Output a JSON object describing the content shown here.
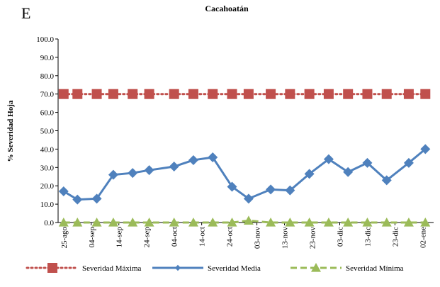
{
  "chart_data": {
    "type": "line",
    "title": "Cacahoatán",
    "annotation": "E",
    "ylabel": "% Severidad Hoja",
    "x": [
      0,
      5,
      12,
      18,
      25,
      31,
      40,
      47,
      54,
      61,
      67,
      75,
      82,
      89,
      96,
      103,
      110,
      117,
      125,
      131
    ],
    "xlim": [
      -2,
      134
    ],
    "xticks": [
      {
        "value": 0,
        "label": "25-ago"
      },
      {
        "value": 10,
        "label": "04-sep"
      },
      {
        "value": 20,
        "label": "14-sep"
      },
      {
        "value": 30,
        "label": "24-sep"
      },
      {
        "value": 40,
        "label": "04-oct"
      },
      {
        "value": 50,
        "label": "14-oct"
      },
      {
        "value": 60,
        "label": "24-oct"
      },
      {
        "value": 70,
        "label": "03-nov"
      },
      {
        "value": 80,
        "label": "13-nov"
      },
      {
        "value": 90,
        "label": "23-nov"
      },
      {
        "value": 100,
        "label": "03-dic"
      },
      {
        "value": 110,
        "label": "13-dic"
      },
      {
        "value": 120,
        "label": "23-dic"
      },
      {
        "value": 130,
        "label": "02-ene"
      }
    ],
    "ylim": [
      0,
      100
    ],
    "yticks": [
      {
        "value": 0,
        "label": "0.0"
      },
      {
        "value": 10,
        "label": "10.0"
      },
      {
        "value": 20,
        "label": "20.0"
      },
      {
        "value": 30,
        "label": "30.0"
      },
      {
        "value": 40,
        "label": "40.0"
      },
      {
        "value": 50,
        "label": "50.0"
      },
      {
        "value": 60,
        "label": "60.0"
      },
      {
        "value": 70,
        "label": "70.0"
      },
      {
        "value": 80,
        "label": "80.0"
      },
      {
        "value": 90,
        "label": "90.0"
      },
      {
        "value": 100,
        "label": "100.0"
      }
    ],
    "grid": false,
    "legend": "bottom",
    "series": [
      {
        "name": "Severidad Máxima",
        "color": "#c0504d",
        "marker": "square",
        "line": "dotted",
        "values": [
          70,
          70,
          70,
          70,
          70,
          70,
          70,
          70,
          70,
          70,
          70,
          70,
          70,
          70,
          70,
          70,
          70,
          70,
          70,
          70
        ]
      },
      {
        "name": "Severidad Media",
        "color": "#4f81bd",
        "marker": "diamond",
        "line": "solid",
        "values": [
          17,
          12.5,
          13,
          26,
          27,
          28.5,
          30.5,
          34,
          35.5,
          19.5,
          13,
          18,
          17.5,
          26.5,
          34.5,
          27.5,
          32.5,
          23,
          32.5,
          40
        ]
      },
      {
        "name": "Severidad Mínima",
        "color": "#9bbb59",
        "marker": "triangle",
        "line": "dashed",
        "values": [
          0,
          0,
          0,
          0,
          0,
          0,
          0,
          0,
          0,
          0,
          1,
          0,
          0,
          0,
          0,
          0,
          0,
          0,
          0,
          0
        ]
      }
    ]
  }
}
